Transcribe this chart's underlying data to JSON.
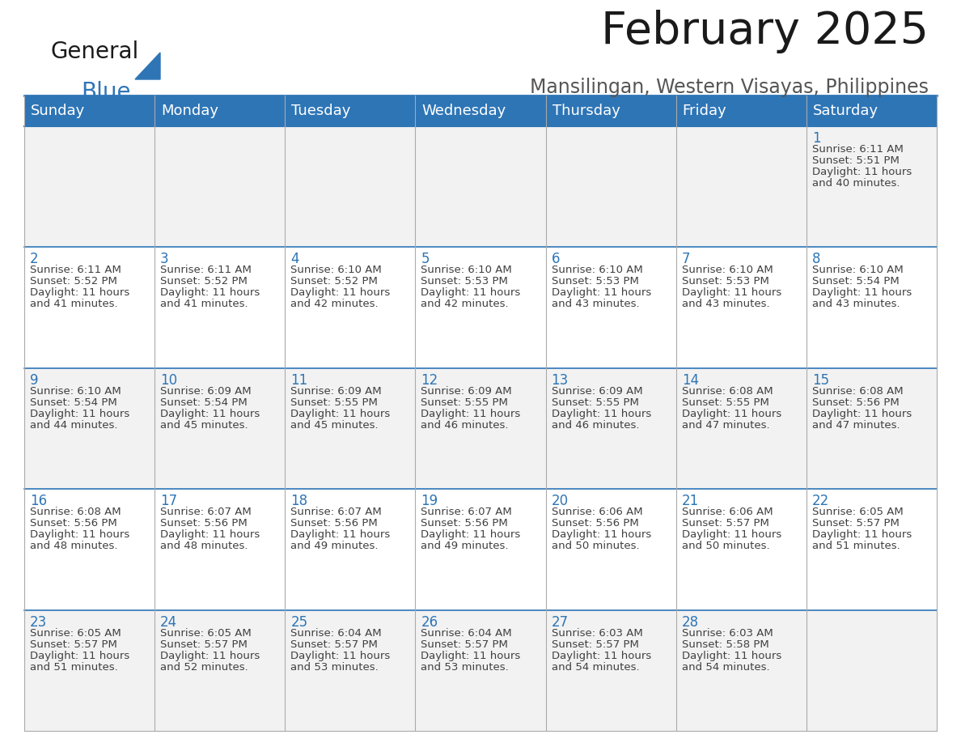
{
  "title": "February 2025",
  "subtitle": "Mansilingan, Western Visayas, Philippines",
  "header_bg": "#2E75B6",
  "header_text_color": "#FFFFFF",
  "row_bg_light": "#F2F2F2",
  "row_bg_white": "#FFFFFF",
  "day_number_color": "#2E75B6",
  "text_color": "#404040",
  "grid_color": "#AAAAAA",
  "days_of_week": [
    "Sunday",
    "Monday",
    "Tuesday",
    "Wednesday",
    "Thursday",
    "Friday",
    "Saturday"
  ],
  "calendar_data": [
    [
      null,
      null,
      null,
      null,
      null,
      null,
      {
        "day": "1",
        "sunrise": "6:11 AM",
        "sunset": "5:51 PM",
        "daylight": "11 hours and 40 minutes."
      }
    ],
    [
      {
        "day": "2",
        "sunrise": "6:11 AM",
        "sunset": "5:52 PM",
        "daylight": "11 hours and 41 minutes."
      },
      {
        "day": "3",
        "sunrise": "6:11 AM",
        "sunset": "5:52 PM",
        "daylight": "11 hours and 41 minutes."
      },
      {
        "day": "4",
        "sunrise": "6:10 AM",
        "sunset": "5:52 PM",
        "daylight": "11 hours and 42 minutes."
      },
      {
        "day": "5",
        "sunrise": "6:10 AM",
        "sunset": "5:53 PM",
        "daylight": "11 hours and 42 minutes."
      },
      {
        "day": "6",
        "sunrise": "6:10 AM",
        "sunset": "5:53 PM",
        "daylight": "11 hours and 43 minutes."
      },
      {
        "day": "7",
        "sunrise": "6:10 AM",
        "sunset": "5:53 PM",
        "daylight": "11 hours and 43 minutes."
      },
      {
        "day": "8",
        "sunrise": "6:10 AM",
        "sunset": "5:54 PM",
        "daylight": "11 hours and 43 minutes."
      }
    ],
    [
      {
        "day": "9",
        "sunrise": "6:10 AM",
        "sunset": "5:54 PM",
        "daylight": "11 hours and 44 minutes."
      },
      {
        "day": "10",
        "sunrise": "6:09 AM",
        "sunset": "5:54 PM",
        "daylight": "11 hours and 45 minutes."
      },
      {
        "day": "11",
        "sunrise": "6:09 AM",
        "sunset": "5:55 PM",
        "daylight": "11 hours and 45 minutes."
      },
      {
        "day": "12",
        "sunrise": "6:09 AM",
        "sunset": "5:55 PM",
        "daylight": "11 hours and 46 minutes."
      },
      {
        "day": "13",
        "sunrise": "6:09 AM",
        "sunset": "5:55 PM",
        "daylight": "11 hours and 46 minutes."
      },
      {
        "day": "14",
        "sunrise": "6:08 AM",
        "sunset": "5:55 PM",
        "daylight": "11 hours and 47 minutes."
      },
      {
        "day": "15",
        "sunrise": "6:08 AM",
        "sunset": "5:56 PM",
        "daylight": "11 hours and 47 minutes."
      }
    ],
    [
      {
        "day": "16",
        "sunrise": "6:08 AM",
        "sunset": "5:56 PM",
        "daylight": "11 hours and 48 minutes."
      },
      {
        "day": "17",
        "sunrise": "6:07 AM",
        "sunset": "5:56 PM",
        "daylight": "11 hours and 48 minutes."
      },
      {
        "day": "18",
        "sunrise": "6:07 AM",
        "sunset": "5:56 PM",
        "daylight": "11 hours and 49 minutes."
      },
      {
        "day": "19",
        "sunrise": "6:07 AM",
        "sunset": "5:56 PM",
        "daylight": "11 hours and 49 minutes."
      },
      {
        "day": "20",
        "sunrise": "6:06 AM",
        "sunset": "5:56 PM",
        "daylight": "11 hours and 50 minutes."
      },
      {
        "day": "21",
        "sunrise": "6:06 AM",
        "sunset": "5:57 PM",
        "daylight": "11 hours and 50 minutes."
      },
      {
        "day": "22",
        "sunrise": "6:05 AM",
        "sunset": "5:57 PM",
        "daylight": "11 hours and 51 minutes."
      }
    ],
    [
      {
        "day": "23",
        "sunrise": "6:05 AM",
        "sunset": "5:57 PM",
        "daylight": "11 hours and 51 minutes."
      },
      {
        "day": "24",
        "sunrise": "6:05 AM",
        "sunset": "5:57 PM",
        "daylight": "11 hours and 52 minutes."
      },
      {
        "day": "25",
        "sunrise": "6:04 AM",
        "sunset": "5:57 PM",
        "daylight": "11 hours and 53 minutes."
      },
      {
        "day": "26",
        "sunrise": "6:04 AM",
        "sunset": "5:57 PM",
        "daylight": "11 hours and 53 minutes."
      },
      {
        "day": "27",
        "sunrise": "6:03 AM",
        "sunset": "5:57 PM",
        "daylight": "11 hours and 54 minutes."
      },
      {
        "day": "28",
        "sunrise": "6:03 AM",
        "sunset": "5:58 PM",
        "daylight": "11 hours and 54 minutes."
      },
      null
    ]
  ]
}
